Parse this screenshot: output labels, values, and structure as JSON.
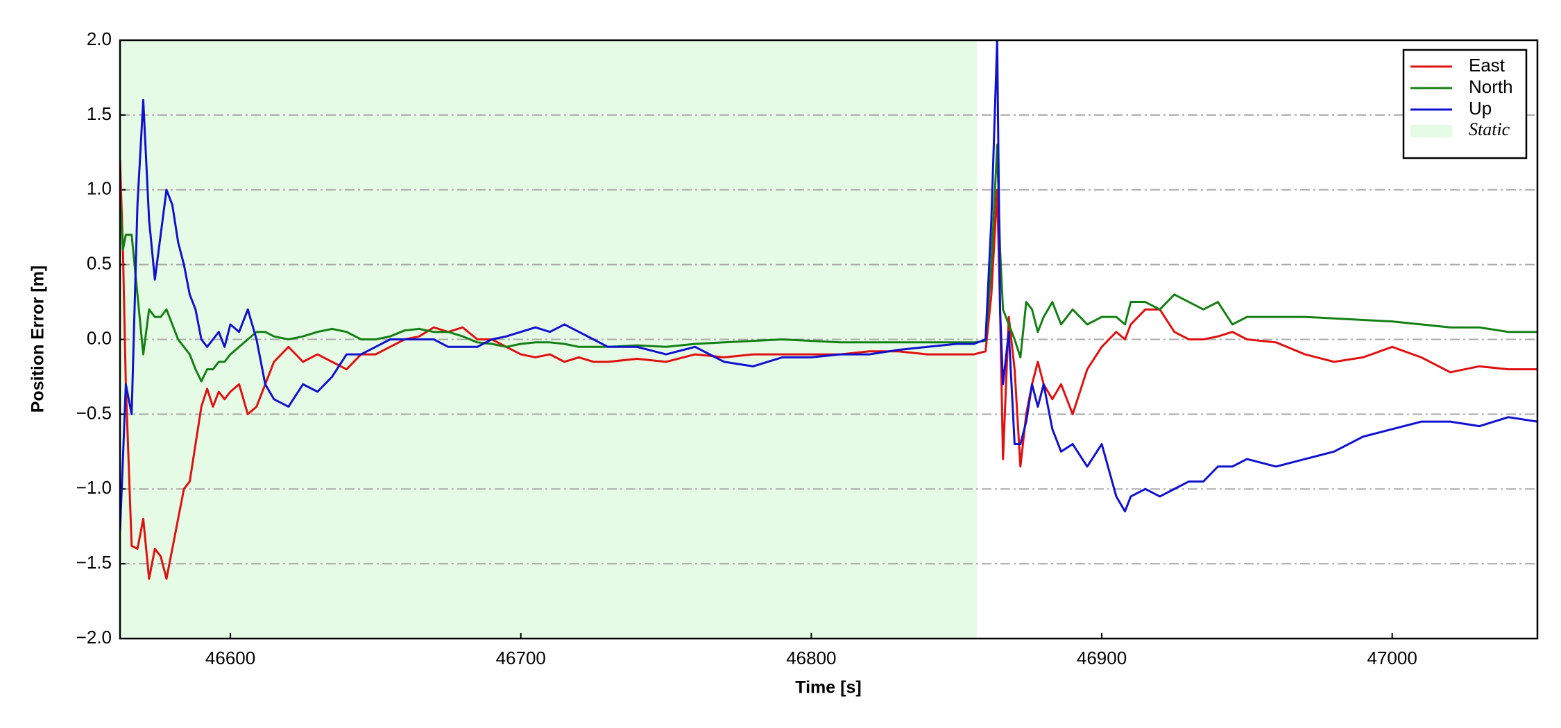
{
  "chart_data": {
    "type": "line",
    "xlabel": "Time [s]",
    "ylabel": "Position Error [m]",
    "xlim": [
      46562,
      47050
    ],
    "ylim": [
      -2.0,
      2.0
    ],
    "xticks": [
      46600,
      46700,
      46800,
      46900,
      47000
    ],
    "yticks": [
      {
        "value": -2.0,
        "label": "−2.0"
      },
      {
        "value": -1.5,
        "label": "−1.5"
      },
      {
        "value": -1.0,
        "label": "−1.0"
      },
      {
        "value": -0.5,
        "label": "−0.5"
      },
      {
        "value": 0.0,
        "label": "0.0"
      },
      {
        "value": 0.5,
        "label": "0.5"
      },
      {
        "value": 1.0,
        "label": "1.0"
      },
      {
        "value": 1.5,
        "label": "1.5"
      },
      {
        "value": 2.0,
        "label": "2.0"
      }
    ],
    "grid": true,
    "legend": "upper right",
    "shaded_region": {
      "label": "Static",
      "xlim": [
        46562,
        46857
      ],
      "color": "#e6fbe6"
    },
    "x": [
      46562,
      46563,
      46564,
      46566,
      46568,
      46570,
      46572,
      46574,
      46576,
      46578,
      46580,
      46582,
      46584,
      46586,
      46588,
      46590,
      46592,
      46594,
      46596,
      46598,
      46600,
      46603,
      46606,
      46609,
      46612,
      46615,
      46620,
      46625,
      46630,
      46635,
      46640,
      46645,
      46650,
      46655,
      46660,
      46665,
      46670,
      46675,
      46680,
      46685,
      46690,
      46695,
      46700,
      46705,
      46710,
      46715,
      46720,
      46725,
      46730,
      46740,
      46750,
      46760,
      46770,
      46780,
      46790,
      46800,
      46810,
      46820,
      46830,
      46840,
      46850,
      46856,
      46860,
      46862,
      46864,
      46865,
      46866,
      46868,
      46870,
      46872,
      46874,
      46876,
      46878,
      46880,
      46883,
      46886,
      46890,
      46895,
      46900,
      46905,
      46908,
      46910,
      46915,
      46920,
      46925,
      46930,
      46935,
      46940,
      46945,
      46950,
      46960,
      46970,
      46980,
      46990,
      47000,
      47010,
      47020,
      47030,
      47040,
      47050
    ],
    "series": [
      {
        "name": "East",
        "color": "#e01010",
        "values": [
          1.2,
          0.6,
          -0.3,
          -1.38,
          -1.4,
          -1.2,
          -1.6,
          -1.4,
          -1.45,
          -1.6,
          -1.4,
          -1.2,
          -1.0,
          -0.95,
          -0.7,
          -0.45,
          -0.33,
          -0.45,
          -0.35,
          -0.4,
          -0.35,
          -0.3,
          -0.5,
          -0.45,
          -0.3,
          -0.15,
          -0.05,
          -0.15,
          -0.1,
          -0.15,
          -0.2,
          -0.1,
          -0.1,
          -0.05,
          0.0,
          0.02,
          0.08,
          0.05,
          0.08,
          0.0,
          0.0,
          -0.05,
          -0.1,
          -0.12,
          -0.1,
          -0.15,
          -0.12,
          -0.15,
          -0.15,
          -0.13,
          -0.15,
          -0.1,
          -0.12,
          -0.1,
          -0.1,
          -0.1,
          -0.1,
          -0.08,
          -0.08,
          -0.1,
          -0.1,
          -0.1,
          -0.08,
          0.3,
          1.0,
          0.2,
          -0.8,
          0.15,
          -0.2,
          -0.85,
          -0.5,
          -0.3,
          -0.15,
          -0.3,
          -0.4,
          -0.3,
          -0.5,
          -0.2,
          -0.05,
          0.05,
          0.0,
          0.1,
          0.2,
          0.2,
          0.05,
          0.0,
          0.0,
          0.02,
          0.05,
          0.0,
          -0.02,
          -0.1,
          -0.15,
          -0.12,
          -0.05,
          -0.12,
          -0.22,
          -0.18,
          -0.2,
          -0.2
        ]
      },
      {
        "name": "North",
        "color": "#138013",
        "values": [
          0.95,
          0.6,
          0.7,
          0.7,
          0.3,
          -0.1,
          0.2,
          0.15,
          0.15,
          0.2,
          0.1,
          0.0,
          -0.05,
          -0.1,
          -0.2,
          -0.28,
          -0.2,
          -0.2,
          -0.15,
          -0.15,
          -0.1,
          -0.05,
          0.0,
          0.05,
          0.05,
          0.02,
          0.0,
          0.02,
          0.05,
          0.07,
          0.05,
          0.0,
          0.0,
          0.02,
          0.06,
          0.07,
          0.05,
          0.05,
          0.02,
          -0.02,
          -0.03,
          -0.05,
          -0.03,
          -0.02,
          -0.02,
          -0.03,
          -0.05,
          -0.05,
          -0.05,
          -0.04,
          -0.05,
          -0.03,
          -0.02,
          -0.01,
          0.0,
          -0.01,
          -0.02,
          -0.02,
          -0.02,
          -0.02,
          -0.02,
          -0.02,
          -0.01,
          0.5,
          1.3,
          0.6,
          0.2,
          0.1,
          0.0,
          -0.12,
          0.25,
          0.2,
          0.05,
          0.15,
          0.25,
          0.1,
          0.2,
          0.1,
          0.15,
          0.15,
          0.1,
          0.25,
          0.25,
          0.2,
          0.3,
          0.25,
          0.2,
          0.25,
          0.1,
          0.15,
          0.15,
          0.15,
          0.14,
          0.13,
          0.12,
          0.1,
          0.08,
          0.08,
          0.05,
          0.05
        ]
      },
      {
        "name": "Up",
        "color": "#1010d0",
        "values": [
          -1.28,
          -0.8,
          -0.3,
          -0.5,
          0.9,
          1.6,
          0.8,
          0.4,
          0.7,
          1.0,
          0.9,
          0.65,
          0.5,
          0.3,
          0.2,
          0.0,
          -0.05,
          0.0,
          0.05,
          -0.05,
          0.1,
          0.05,
          0.2,
          0.0,
          -0.3,
          -0.4,
          -0.45,
          -0.3,
          -0.35,
          -0.25,
          -0.1,
          -0.1,
          -0.05,
          0.0,
          0.0,
          0.0,
          0.0,
          -0.05,
          -0.05,
          -0.05,
          0.0,
          0.02,
          0.05,
          0.08,
          0.05,
          0.1,
          0.05,
          0.0,
          -0.05,
          -0.05,
          -0.1,
          -0.05,
          -0.15,
          -0.18,
          -0.12,
          -0.12,
          -0.1,
          -0.1,
          -0.07,
          -0.05,
          -0.03,
          -0.03,
          0.0,
          0.8,
          2.0,
          0.2,
          -0.3,
          0.05,
          -0.7,
          -0.7,
          -0.55,
          -0.3,
          -0.45,
          -0.3,
          -0.6,
          -0.75,
          -0.7,
          -0.85,
          -0.7,
          -1.05,
          -1.15,
          -1.05,
          -1.0,
          -1.05,
          -1.0,
          -0.95,
          -0.95,
          -0.85,
          -0.85,
          -0.8,
          -0.85,
          -0.8,
          -0.75,
          -0.65,
          -0.6,
          -0.55,
          -0.55,
          -0.58,
          -0.52,
          -0.55
        ]
      }
    ]
  }
}
